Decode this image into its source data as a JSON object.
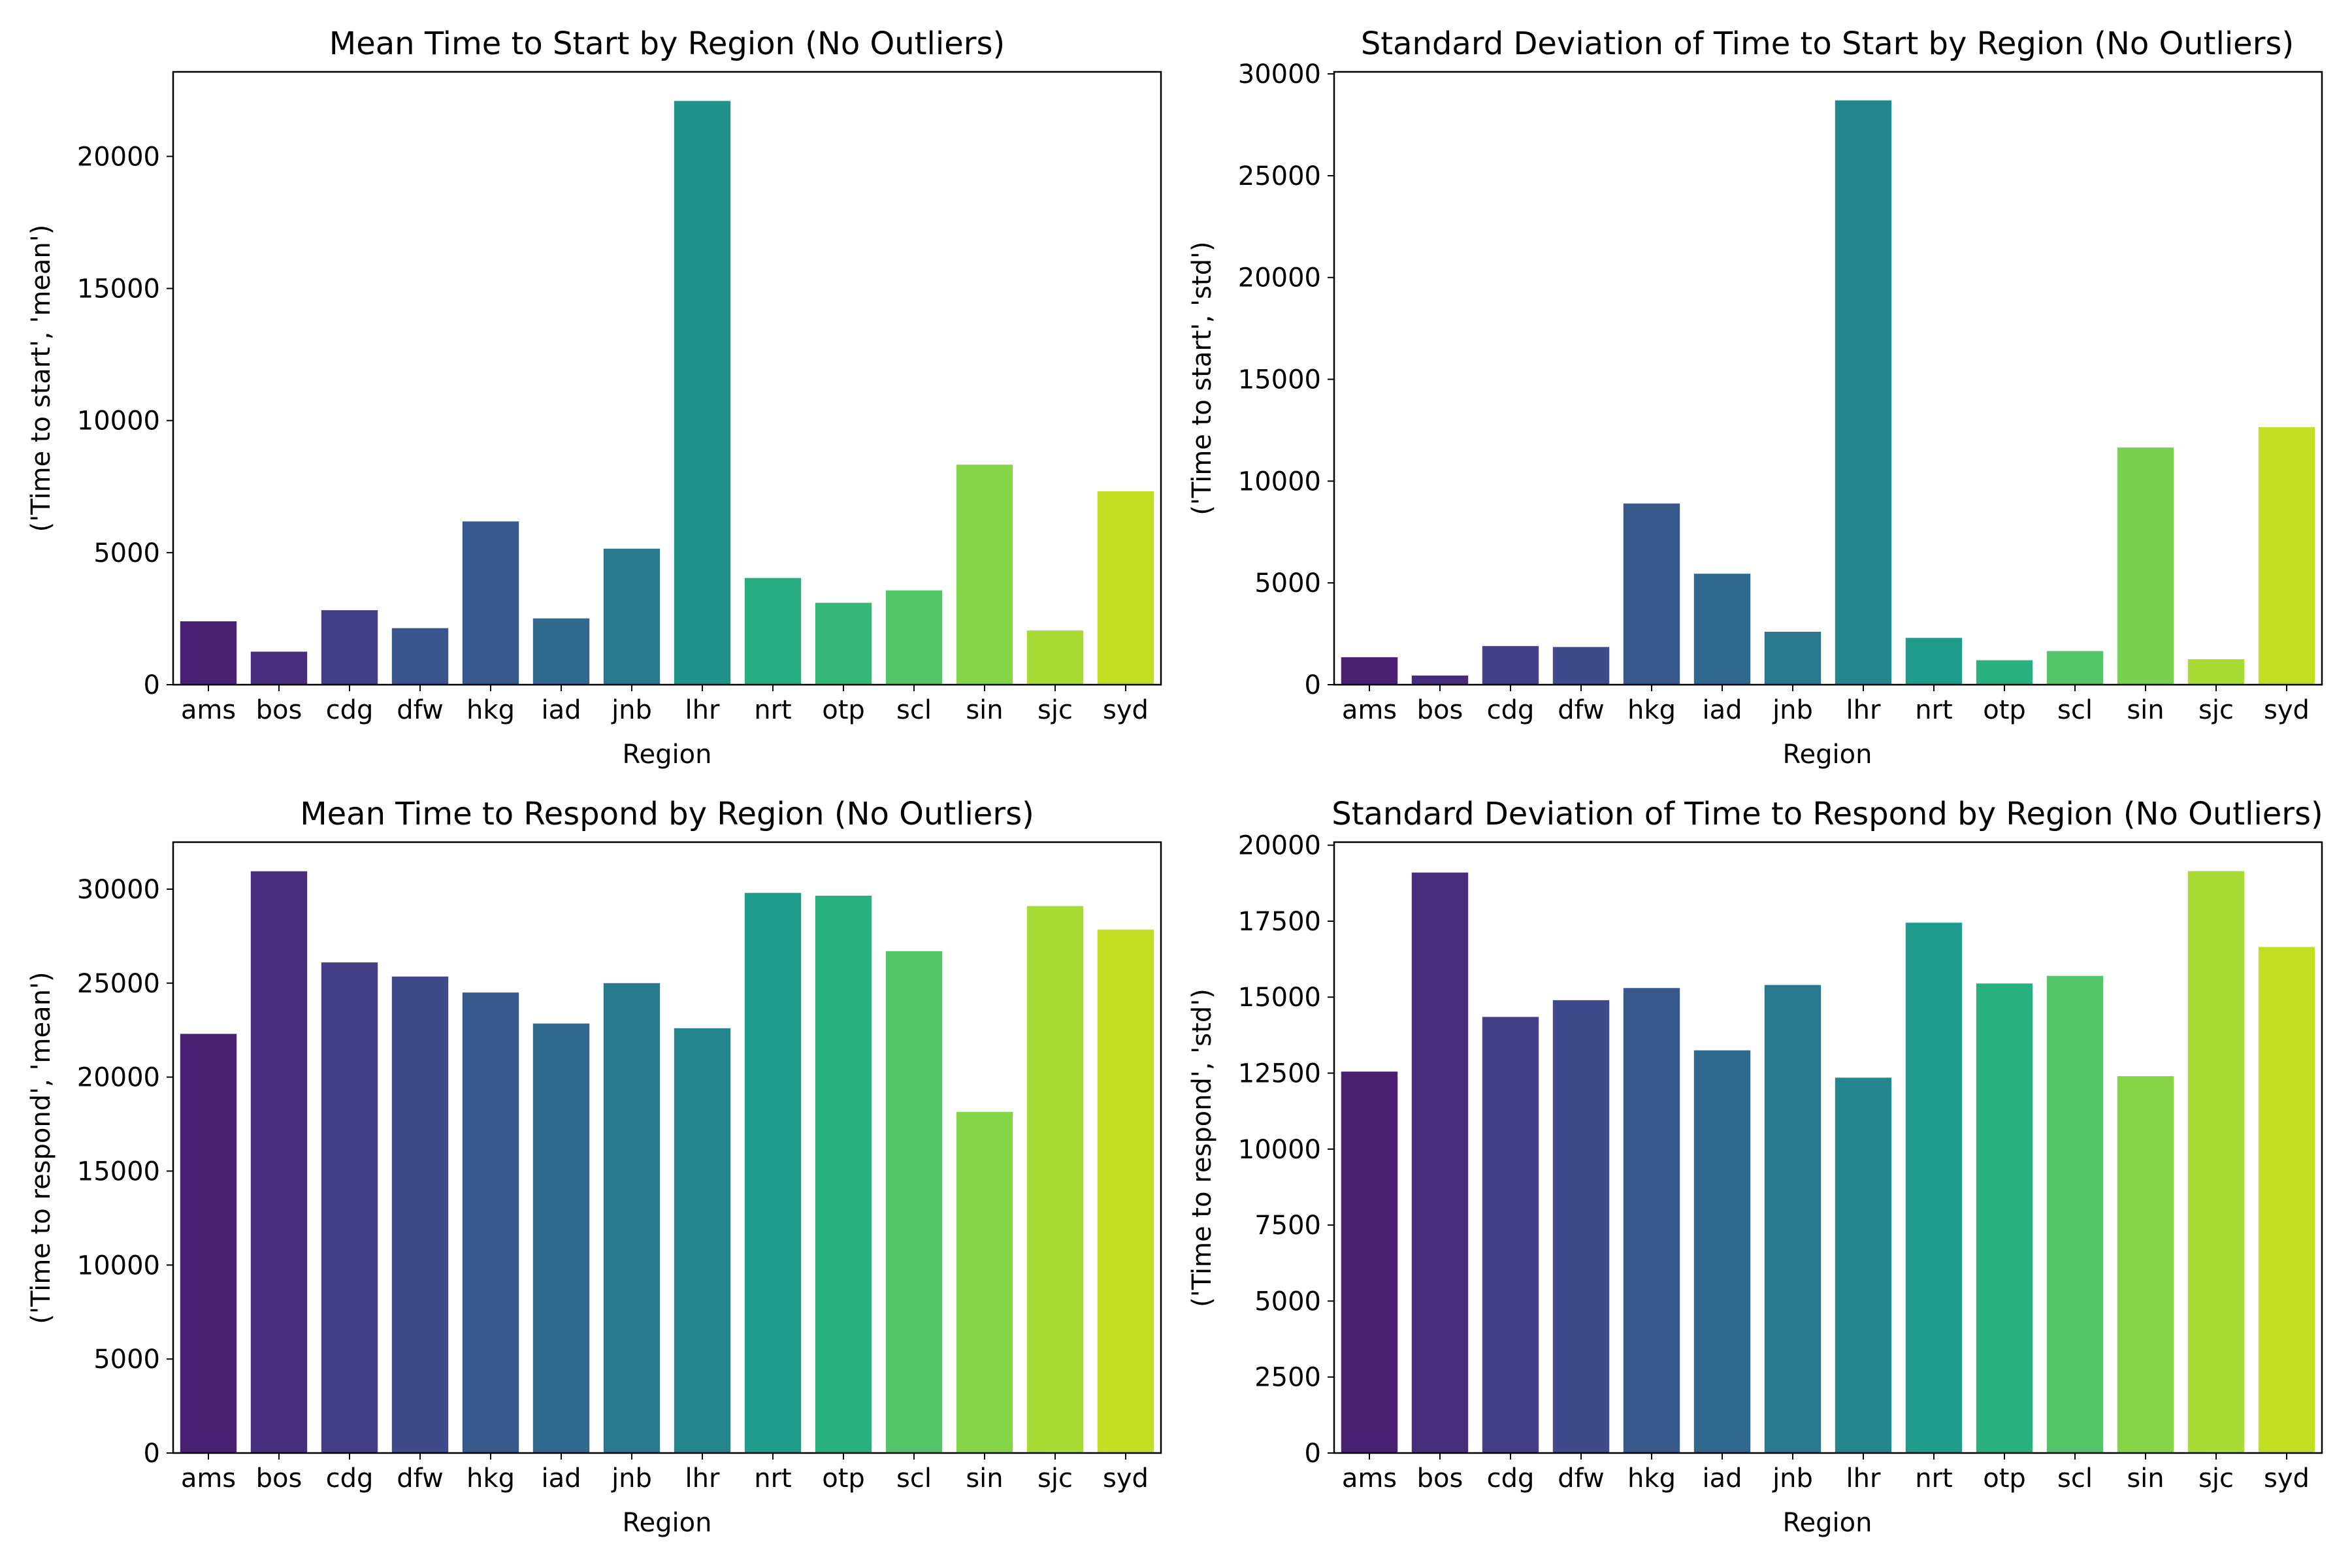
{
  "figure": {
    "background": "#ffffff",
    "palette": [
      "#482173",
      "#433e85",
      "#38588c",
      "#2d708e",
      "#25858e",
      "#1e9b8a",
      "#2ab07f",
      "#52c569",
      "#86d549",
      "#c2df23"
    ]
  },
  "chart_data": [
    {
      "type": "bar",
      "title": "Mean Time to Start by Region (No Outliers)",
      "xlabel": "Region",
      "ylabel": "('Time to start', 'mean')",
      "categories": [
        "ams",
        "bos",
        "cdg",
        "dfw",
        "hkg",
        "iad",
        "jnb",
        "lhr",
        "nrt",
        "otp",
        "scl",
        "sin",
        "sjc",
        "syd"
      ],
      "values": [
        2400,
        1250,
        2820,
        2140,
        6180,
        2510,
        5150,
        22100,
        4040,
        3100,
        3570,
        8330,
        2050,
        7320
      ],
      "colors": [
        "#482173",
        "#472d7b",
        "#433e85",
        "#3a548c",
        "#38598c",
        "#30698e",
        "#2a788e",
        "#21918c",
        "#27ad81",
        "#35b779",
        "#52c569",
        "#86d549",
        "#a8db34",
        "#c2df23"
      ],
      "ylim": [
        0,
        23200
      ],
      "yticks": [
        0,
        5000,
        10000,
        15000,
        20000
      ],
      "grid": false,
      "legend": "none"
    },
    {
      "type": "bar",
      "title": "Standard Deviation of Time to Start by Region (No Outliers)",
      "xlabel": "Region",
      "ylabel": "('Time to start', 'std')",
      "categories": [
        "ams",
        "bos",
        "cdg",
        "dfw",
        "hkg",
        "iad",
        "jnb",
        "lhr",
        "nrt",
        "otp",
        "scl",
        "sin",
        "sjc",
        "syd"
      ],
      "values": [
        1350,
        450,
        1900,
        1850,
        8900,
        5450,
        2600,
        28700,
        2300,
        1200,
        1650,
        11650,
        1250,
        12650
      ],
      "colors": [
        "#482173",
        "#472d7b",
        "#433e85",
        "#3e4a89",
        "#38598c",
        "#31688e",
        "#2a788e",
        "#25858e",
        "#1e9b8a",
        "#2ab07f",
        "#52c569",
        "#7ad151",
        "#a8db34",
        "#c2df23"
      ],
      "ylim": [
        0,
        30100
      ],
      "yticks": [
        0,
        5000,
        10000,
        15000,
        20000,
        25000,
        30000
      ],
      "grid": false,
      "legend": "none"
    },
    {
      "type": "bar",
      "title": "Mean Time to Respond by Region (No Outliers)",
      "xlabel": "Region",
      "ylabel": "('Time to respond', 'mean')",
      "categories": [
        "ams",
        "bos",
        "cdg",
        "dfw",
        "hkg",
        "iad",
        "jnb",
        "lhr",
        "nrt",
        "otp",
        "scl",
        "sin",
        "sjc",
        "syd"
      ],
      "values": [
        22300,
        30950,
        26100,
        25350,
        24500,
        22850,
        25000,
        22600,
        29800,
        29650,
        26700,
        18150,
        29100,
        27850
      ],
      "colors": [
        "#482173",
        "#472d7b",
        "#433e85",
        "#3e4a89",
        "#38598c",
        "#31688e",
        "#2a788e",
        "#25858e",
        "#1e9b8a",
        "#2ab07f",
        "#52c569",
        "#86d549",
        "#a8db34",
        "#c2df23"
      ],
      "ylim": [
        0,
        32500
      ],
      "yticks": [
        0,
        5000,
        10000,
        15000,
        20000,
        25000,
        30000
      ],
      "grid": false,
      "legend": "none"
    },
    {
      "type": "bar",
      "title": "Standard Deviation of Time to Respond by Region (No Outliers)",
      "xlabel": "Region",
      "ylabel": "('Time to respond', 'std')",
      "categories": [
        "ams",
        "bos",
        "cdg",
        "dfw",
        "hkg",
        "iad",
        "jnb",
        "lhr",
        "nrt",
        "otp",
        "scl",
        "sin",
        "sjc",
        "syd"
      ],
      "values": [
        12550,
        19100,
        14350,
        14900,
        15300,
        13250,
        15400,
        12350,
        17450,
        15450,
        15700,
        12400,
        19150,
        16650
      ],
      "colors": [
        "#482173",
        "#472d7b",
        "#433e85",
        "#3e4a89",
        "#38598c",
        "#31688e",
        "#2a788e",
        "#25858e",
        "#1e9b8a",
        "#2ab07f",
        "#52c569",
        "#86d549",
        "#a8db34",
        "#c2df23"
      ],
      "ylim": [
        0,
        20100
      ],
      "yticks": [
        0,
        2500,
        5000,
        7500,
        10000,
        12500,
        15000,
        17500,
        20000
      ],
      "grid": false,
      "legend": "none"
    }
  ]
}
